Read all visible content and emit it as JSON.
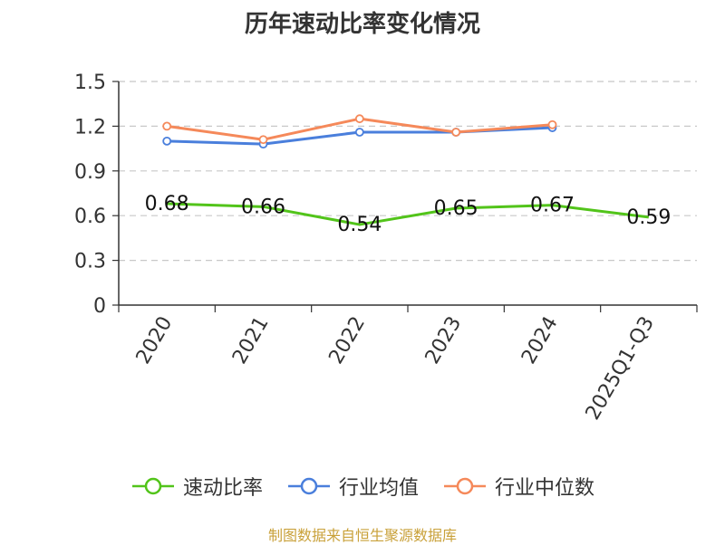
{
  "chart_data": {
    "type": "line",
    "title": "历年速动比率变化情况",
    "categories": [
      "2020",
      "2021",
      "2022",
      "2023",
      "2024",
      "2025Q1-Q3"
    ],
    "ylim": [
      0,
      1.5
    ],
    "yticks": [
      "0",
      "0.3",
      "0.6",
      "0.9",
      "1.2",
      "1.5"
    ],
    "ytick_values": [
      0,
      0.3,
      0.6,
      0.9,
      1.2,
      1.5
    ],
    "grid": true,
    "legend_position": "bottom",
    "series": [
      {
        "name": "速动比率",
        "color": "#52c41a",
        "values": [
          0.68,
          0.66,
          0.54,
          0.65,
          0.67,
          0.59
        ],
        "labels": [
          "0.68",
          "0.66",
          "0.54",
          "0.65",
          "0.67",
          "0.59"
        ]
      },
      {
        "name": "行业均值",
        "color": "#4a7fdc",
        "values": [
          1.1,
          1.08,
          1.16,
          1.16,
          1.19,
          null
        ]
      },
      {
        "name": "行业中位数",
        "color": "#f5895a",
        "values": [
          1.2,
          1.11,
          1.25,
          1.16,
          1.21,
          null
        ]
      }
    ]
  },
  "source": "制图数据来自恒生聚源数据库"
}
